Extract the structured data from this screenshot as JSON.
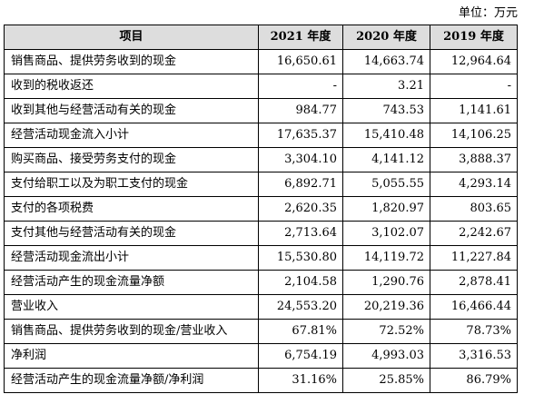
{
  "unit_label": "单位：万元",
  "table": {
    "headers": [
      "项目",
      "2021 年度",
      "2020 年度",
      "2019 年度"
    ],
    "rows": [
      {
        "label": "销售商品、提供劳务收到的现金",
        "v2021": "16,650.61",
        "v2020": "14,663.74",
        "v2019": "12,964.64"
      },
      {
        "label": "收到的税收返还",
        "v2021": "-",
        "v2020": "3.21",
        "v2019": "-"
      },
      {
        "label": "收到其他与经营活动有关的现金",
        "v2021": "984.77",
        "v2020": "743.53",
        "v2019": "1,141.61"
      },
      {
        "label": "经营活动现金流入小计",
        "v2021": "17,635.37",
        "v2020": "15,410.48",
        "v2019": "14,106.25"
      },
      {
        "label": "购买商品、接受劳务支付的现金",
        "v2021": "3,304.10",
        "v2020": "4,141.12",
        "v2019": "3,888.37"
      },
      {
        "label": "支付给职工以及为职工支付的现金",
        "v2021": "6,892.71",
        "v2020": "5,055.55",
        "v2019": "4,293.14"
      },
      {
        "label": "支付的各项税费",
        "v2021": "2,620.35",
        "v2020": "1,820.97",
        "v2019": "803.65"
      },
      {
        "label": "支付其他与经营活动有关的现金",
        "v2021": "2,713.64",
        "v2020": "3,102.07",
        "v2019": "2,242.67"
      },
      {
        "label": "经营活动现金流出小计",
        "v2021": "15,530.80",
        "v2020": "14,119.72",
        "v2019": "11,227.84"
      },
      {
        "label": "经营活动产生的现金流量净额",
        "v2021": "2,104.58",
        "v2020": "1,290.76",
        "v2019": "2,878.41"
      },
      {
        "label": "营业收入",
        "v2021": "24,553.20",
        "v2020": "20,219.36",
        "v2019": "16,466.44"
      },
      {
        "label": "销售商品、提供劳务收到的现金/营业收入",
        "v2021": "67.81%",
        "v2020": "72.52%",
        "v2019": "78.73%"
      },
      {
        "label": "净利润",
        "v2021": "6,754.19",
        "v2020": "4,993.03",
        "v2019": "3,316.53"
      },
      {
        "label": "经营活动产生的现金流量净额/净利润",
        "v2021": "31.16%",
        "v2020": "25.85%",
        "v2019": "86.79%"
      }
    ]
  }
}
